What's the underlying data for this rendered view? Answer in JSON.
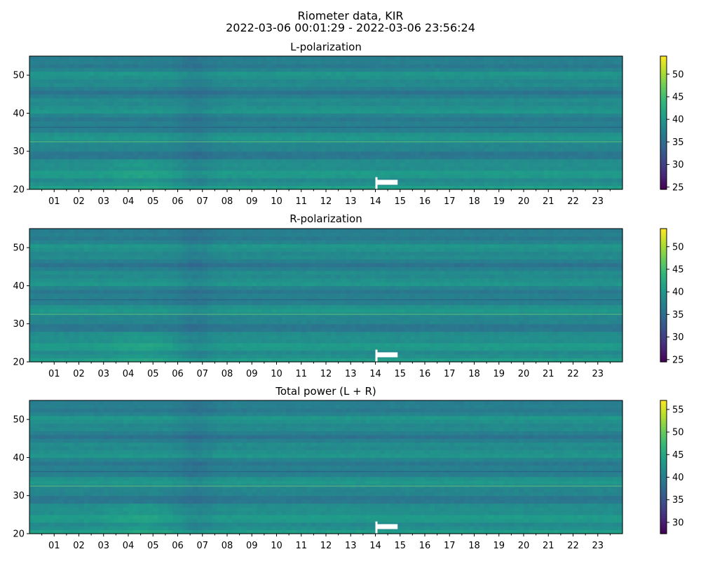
{
  "figure": {
    "title_line1": "Riometer data, KIR",
    "title_line2": "2022-03-06 00:01:29 - 2022-03-06 23:56:24"
  },
  "chart_data": [
    {
      "type": "heatmap",
      "title": "L-polarization",
      "x_tick_labels": [
        "01",
        "02",
        "03",
        "04",
        "05",
        "06",
        "07",
        "08",
        "09",
        "10",
        "11",
        "12",
        "13",
        "14",
        "15",
        "16",
        "17",
        "18",
        "19",
        "20",
        "21",
        "22",
        "23"
      ],
      "x_unit": "hour of day",
      "xlim": [
        0,
        24
      ],
      "y_ticks": [
        20,
        30,
        40,
        50
      ],
      "ylim": [
        20,
        55
      ],
      "colorbar_ticks": [
        25,
        30,
        35,
        40,
        45,
        50
      ],
      "colorbar_range": [
        24.5,
        54
      ],
      "colormap": "viridis",
      "white_gap_hours": [
        14.0,
        14.9
      ]
    },
    {
      "type": "heatmap",
      "title": "R-polarization",
      "x_tick_labels": [
        "01",
        "02",
        "03",
        "04",
        "05",
        "06",
        "07",
        "08",
        "09",
        "10",
        "11",
        "12",
        "13",
        "14",
        "15",
        "16",
        "17",
        "18",
        "19",
        "20",
        "21",
        "22",
        "23"
      ],
      "x_unit": "hour of day",
      "xlim": [
        0,
        24
      ],
      "y_ticks": [
        20,
        30,
        40,
        50
      ],
      "ylim": [
        20,
        55
      ],
      "colorbar_ticks": [
        25,
        30,
        35,
        40,
        45,
        50
      ],
      "colorbar_range": [
        24.5,
        54
      ],
      "colormap": "viridis",
      "white_gap_hours": [
        14.0,
        14.9
      ]
    },
    {
      "type": "heatmap",
      "title": "Total power (L + R)",
      "x_tick_labels": [
        "01",
        "02",
        "03",
        "04",
        "05",
        "06",
        "07",
        "08",
        "09",
        "10",
        "11",
        "12",
        "13",
        "14",
        "15",
        "16",
        "17",
        "18",
        "19",
        "20",
        "21",
        "22",
        "23"
      ],
      "x_unit": "hour of day",
      "xlim": [
        0,
        24
      ],
      "y_ticks": [
        20,
        30,
        40,
        50
      ],
      "ylim": [
        20,
        55
      ],
      "colorbar_ticks": [
        30,
        35,
        40,
        45,
        50,
        55
      ],
      "colorbar_range": [
        27.5,
        57
      ],
      "colormap": "viridis",
      "white_gap_hours": [
        14.0,
        14.9
      ]
    }
  ]
}
